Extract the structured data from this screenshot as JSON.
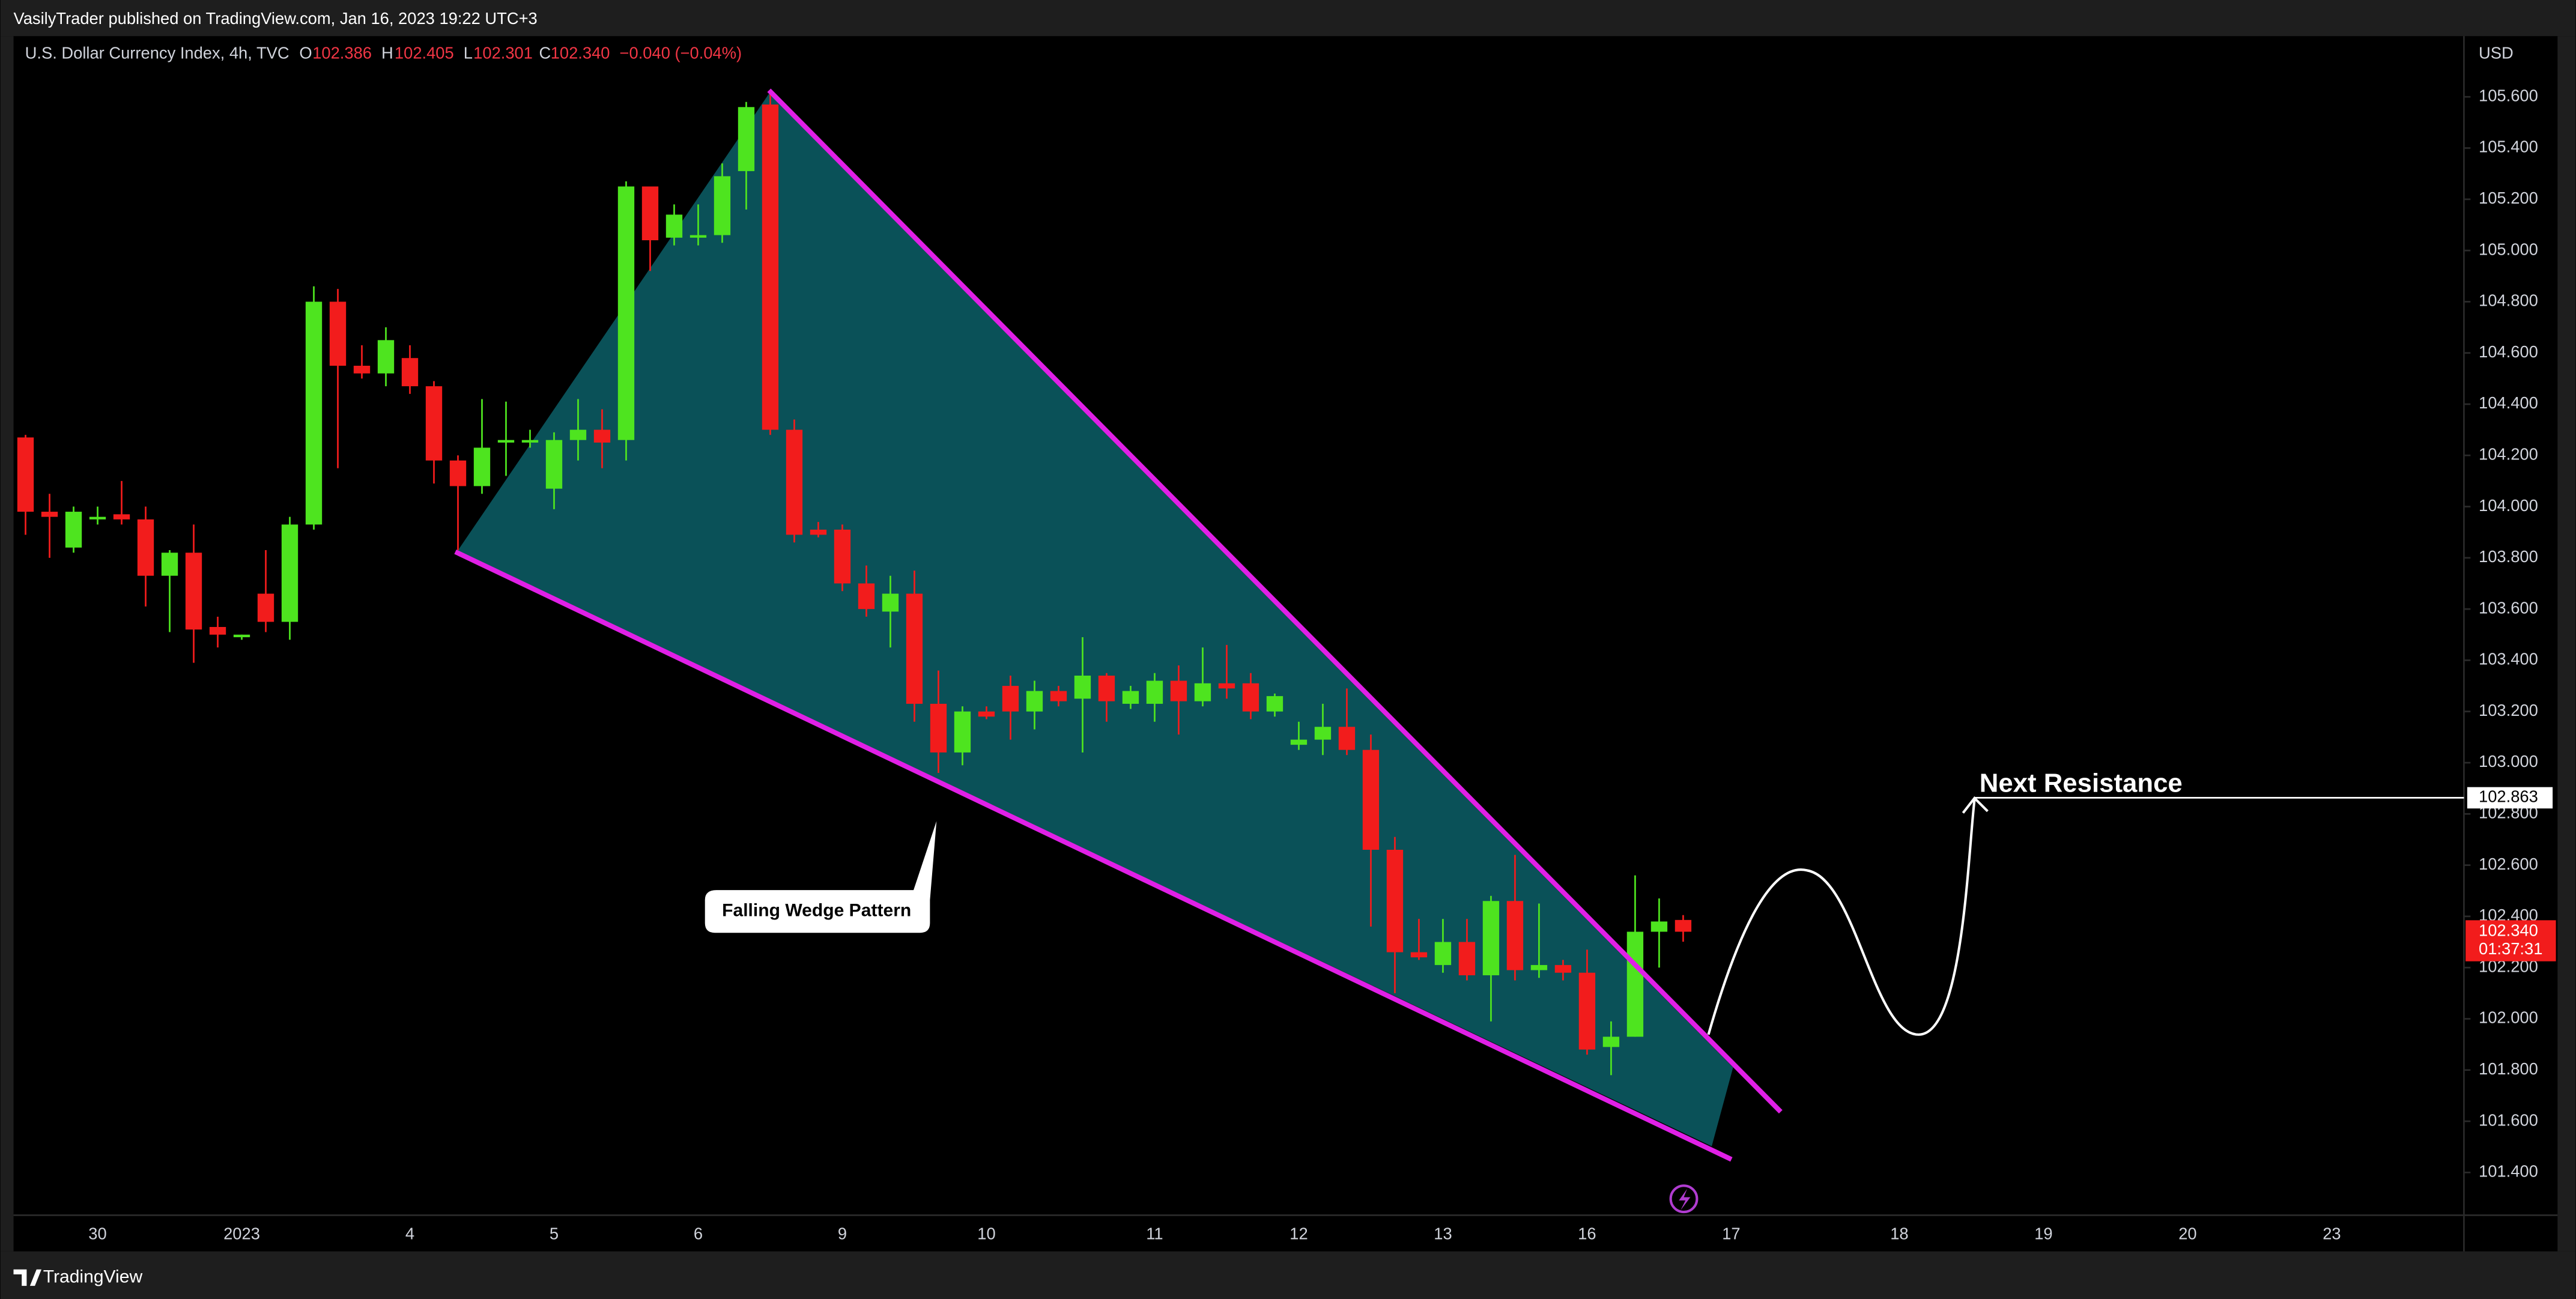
{
  "header": {
    "published": "VasilyTrader published on TradingView.com, Jan 16, 2023 19:22 UTC+3"
  },
  "chart_data": {
    "type": "candlestick",
    "title": "U.S. Dollar Currency Index, 4h, TVC",
    "ohlc_legend": [
      {
        "key": "O",
        "value": 102.386,
        "label": "102.386"
      },
      {
        "key": "H",
        "value": 102.405,
        "label": "102.405"
      },
      {
        "key": "L",
        "value": 102.301,
        "label": "102.301"
      },
      {
        "key": "C",
        "value": 102.34,
        "label": "102.340"
      }
    ],
    "change": "−0.040 (−0.04%)",
    "currency": "USD",
    "up_color": "#4ee41f",
    "down_color": "#f21c1c",
    "grid": false,
    "ylim": [
      101.233,
      105.837
    ],
    "yticks": [
      {
        "value": 101.4,
        "label": "101.400"
      },
      {
        "value": 101.6,
        "label": "101.600"
      },
      {
        "value": 101.8,
        "label": "101.800"
      },
      {
        "value": 102.0,
        "label": "102.000"
      },
      {
        "value": 102.2,
        "label": "102.200"
      },
      {
        "value": 102.4,
        "label": "102.400"
      },
      {
        "value": 102.6,
        "label": "102.600"
      },
      {
        "value": 102.8,
        "label": "102.800"
      },
      {
        "value": 103.0,
        "label": "103.000"
      },
      {
        "value": 103.2,
        "label": "103.200"
      },
      {
        "value": 103.4,
        "label": "103.400"
      },
      {
        "value": 103.6,
        "label": "103.600"
      },
      {
        "value": 103.8,
        "label": "103.800"
      },
      {
        "value": 104.0,
        "label": "104.000"
      },
      {
        "value": 104.2,
        "label": "104.200"
      },
      {
        "value": 104.4,
        "label": "104.400"
      },
      {
        "value": 104.6,
        "label": "104.600"
      },
      {
        "value": 104.8,
        "label": "104.800"
      },
      {
        "value": 105.0,
        "label": "105.000"
      },
      {
        "value": 105.2,
        "label": "105.200"
      },
      {
        "value": 105.4,
        "label": "105.400"
      },
      {
        "value": 105.6,
        "label": "105.600"
      }
    ],
    "categories": [
      null,
      null,
      null,
      "30",
      null,
      null,
      null,
      null,
      null,
      "2023",
      null,
      null,
      null,
      null,
      null,
      null,
      "4",
      null,
      null,
      null,
      null,
      null,
      "5",
      null,
      null,
      null,
      null,
      null,
      "6",
      null,
      null,
      null,
      null,
      null,
      "9",
      null,
      null,
      null,
      null,
      null,
      "10",
      null,
      null,
      null,
      null,
      null,
      null,
      "11",
      null,
      null,
      null,
      null,
      null,
      "12",
      null,
      null,
      null,
      null,
      null,
      "13",
      null,
      null,
      null,
      null,
      null,
      "16",
      null,
      null,
      null,
      null,
      null,
      "17",
      null,
      null,
      null,
      null,
      null,
      null,
      "18",
      null,
      null,
      null,
      null,
      null,
      "19",
      null,
      null,
      null,
      null,
      null,
      "20",
      null,
      null,
      null,
      null,
      null,
      "23",
      null,
      null,
      null,
      null,
      null
    ],
    "open": [
      104.27,
      103.98,
      103.84,
      103.95,
      103.97,
      103.95,
      103.73,
      103.82,
      103.53,
      103.49,
      103.66,
      103.55,
      103.93,
      104.8,
      104.55,
      104.52,
      104.58,
      104.47,
      104.18,
      104.08,
      104.25,
      104.25,
      104.07,
      104.26,
      104.3,
      104.26,
      105.25,
      105.05,
      105.05,
      105.06,
      105.31,
      105.57,
      104.3,
      103.91,
      103.91,
      103.7,
      103.59,
      103.66,
      103.23,
      103.04,
      103.2,
      103.3,
      103.2,
      103.28,
      103.25,
      103.34,
      103.23,
      103.23,
      103.32,
      103.24,
      103.31,
      103.31,
      103.2,
      103.07,
      103.09,
      103.14,
      103.05,
      102.66,
      102.26,
      102.21,
      102.3,
      102.17,
      102.46,
      102.19,
      102.21,
      102.18,
      101.89,
      101.93,
      102.34,
      102.386,
      null,
      null,
      null,
      null,
      null,
      null,
      null,
      null,
      null,
      null,
      null,
      null,
      null,
      null,
      null,
      null,
      null,
      null,
      null,
      null,
      null,
      null,
      null,
      null,
      null,
      null,
      null,
      null,
      null,
      null,
      null,
      null
    ],
    "high": [
      104.28,
      104.05,
      104.0,
      104.0,
      104.1,
      104.0,
      103.83,
      103.93,
      103.57,
      103.5,
      103.83,
      103.96,
      104.86,
      104.85,
      104.63,
      104.7,
      104.63,
      104.49,
      104.2,
      104.42,
      104.41,
      104.3,
      104.29,
      104.42,
      104.38,
      105.27,
      105.25,
      105.18,
      105.18,
      105.34,
      105.58,
      105.62,
      104.34,
      103.94,
      103.93,
      103.77,
      103.73,
      103.75,
      103.36,
      103.22,
      103.22,
      103.34,
      103.32,
      103.3,
      103.49,
      103.35,
      103.3,
      103.35,
      103.38,
      103.45,
      103.46,
      103.35,
      103.27,
      103.16,
      103.23,
      103.29,
      103.11,
      102.71,
      102.39,
      102.39,
      102.39,
      102.48,
      102.64,
      102.45,
      102.23,
      102.27,
      101.99,
      102.56,
      102.47,
      102.405,
      null,
      null,
      null,
      null,
      null,
      null,
      null,
      null,
      null,
      null,
      null,
      null,
      null,
      null,
      null,
      null,
      null,
      null,
      null,
      null,
      null,
      null,
      null,
      null,
      null,
      null,
      null,
      null,
      null,
      null,
      null,
      null
    ],
    "low": [
      103.89,
      103.8,
      103.82,
      103.93,
      103.93,
      103.61,
      103.51,
      103.39,
      103.45,
      103.48,
      103.51,
      103.48,
      103.91,
      104.15,
      104.5,
      104.47,
      104.44,
      104.09,
      103.83,
      104.05,
      104.12,
      104.23,
      103.99,
      104.18,
      104.15,
      104.18,
      104.92,
      105.02,
      105.02,
      105.03,
      105.16,
      104.28,
      103.86,
      103.88,
      103.67,
      103.57,
      103.45,
      103.16,
      102.96,
      102.99,
      103.17,
      103.09,
      103.13,
      103.22,
      103.04,
      103.16,
      103.21,
      103.16,
      103.11,
      103.22,
      103.25,
      103.17,
      103.18,
      103.05,
      103.03,
      103.03,
      102.36,
      102.1,
      102.23,
      102.18,
      102.15,
      101.99,
      102.15,
      102.16,
      102.15,
      101.86,
      101.78,
      101.93,
      102.2,
      102.301,
      null,
      null,
      null,
      null,
      null,
      null,
      null,
      null,
      null,
      null,
      null,
      null,
      null,
      null,
      null,
      null,
      null,
      null,
      null,
      null,
      null,
      null,
      null,
      null,
      null,
      null,
      null,
      null,
      null,
      null,
      null,
      null
    ],
    "close": [
      103.98,
      103.96,
      103.98,
      103.96,
      103.95,
      103.73,
      103.82,
      103.52,
      103.5,
      103.5,
      103.55,
      103.93,
      104.8,
      104.55,
      104.52,
      104.65,
      104.47,
      104.18,
      104.08,
      104.23,
      104.26,
      104.26,
      104.26,
      104.3,
      104.25,
      105.25,
      105.04,
      105.14,
      105.06,
      105.29,
      105.56,
      104.3,
      103.89,
      103.89,
      103.7,
      103.6,
      103.66,
      103.23,
      103.04,
      103.2,
      103.18,
      103.2,
      103.28,
      103.24,
      103.34,
      103.24,
      103.28,
      103.32,
      103.24,
      103.31,
      103.29,
      103.2,
      103.26,
      103.09,
      103.14,
      103.05,
      102.66,
      102.26,
      102.24,
      102.3,
      102.17,
      102.46,
      102.19,
      102.21,
      102.18,
      101.88,
      101.93,
      102.34,
      102.38,
      102.34,
      null,
      null,
      null,
      null,
      null,
      null,
      null,
      null,
      null,
      null,
      null,
      null,
      null,
      null,
      null,
      null,
      null,
      null,
      null,
      null,
      null,
      null,
      null,
      null,
      null,
      null,
      null,
      null,
      null,
      null,
      null,
      null
    ],
    "last_price": {
      "value": 102.34,
      "label": "102.340"
    },
    "countdown": "01:37:31",
    "annotations": {
      "pattern": "Falling Wedge Pattern",
      "target_label": "Next Resistance",
      "target_price": 102.863
    }
  },
  "footer": {
    "brand": "TradingView"
  }
}
